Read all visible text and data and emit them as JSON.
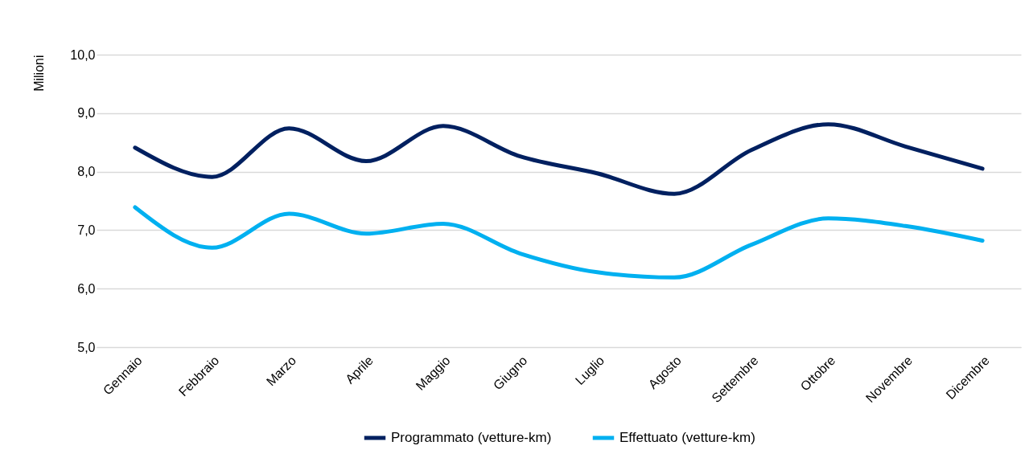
{
  "chart_data": {
    "type": "line",
    "ylabel": "Milioni",
    "categories": [
      "Gennaio",
      "Febbraio",
      "Marzo",
      "Aprile",
      "Maggio",
      "Giugno",
      "Luglio",
      "Agosto",
      "Settembre",
      "Ottobre",
      "Novembre",
      "Dicembre"
    ],
    "series": [
      {
        "name": "Programmato (vetture-km)",
        "color": "#002060",
        "values": [
          8.41,
          7.91,
          8.74,
          8.18,
          8.78,
          8.26,
          7.97,
          7.62,
          8.37,
          8.81,
          8.43,
          8.05
        ]
      },
      {
        "name": "Effettuato (vetture-km)",
        "color": "#00b0f0",
        "values": [
          7.39,
          6.7,
          7.28,
          6.94,
          7.11,
          6.6,
          6.28,
          6.19,
          6.75,
          7.2,
          7.07,
          6.82
        ]
      }
    ],
    "ylim": [
      5,
      10
    ],
    "yticks": [
      {
        "value": 5,
        "label": "5,0"
      },
      {
        "value": 6,
        "label": "6,0"
      },
      {
        "value": 7,
        "label": "7,0"
      },
      {
        "value": 8,
        "label": "8,0"
      },
      {
        "value": 9,
        "label": "9,0"
      },
      {
        "value": 10,
        "label": "10,0"
      }
    ],
    "grid": "y",
    "legend": "bottom",
    "marker": "none",
    "line_style": "solid"
  }
}
